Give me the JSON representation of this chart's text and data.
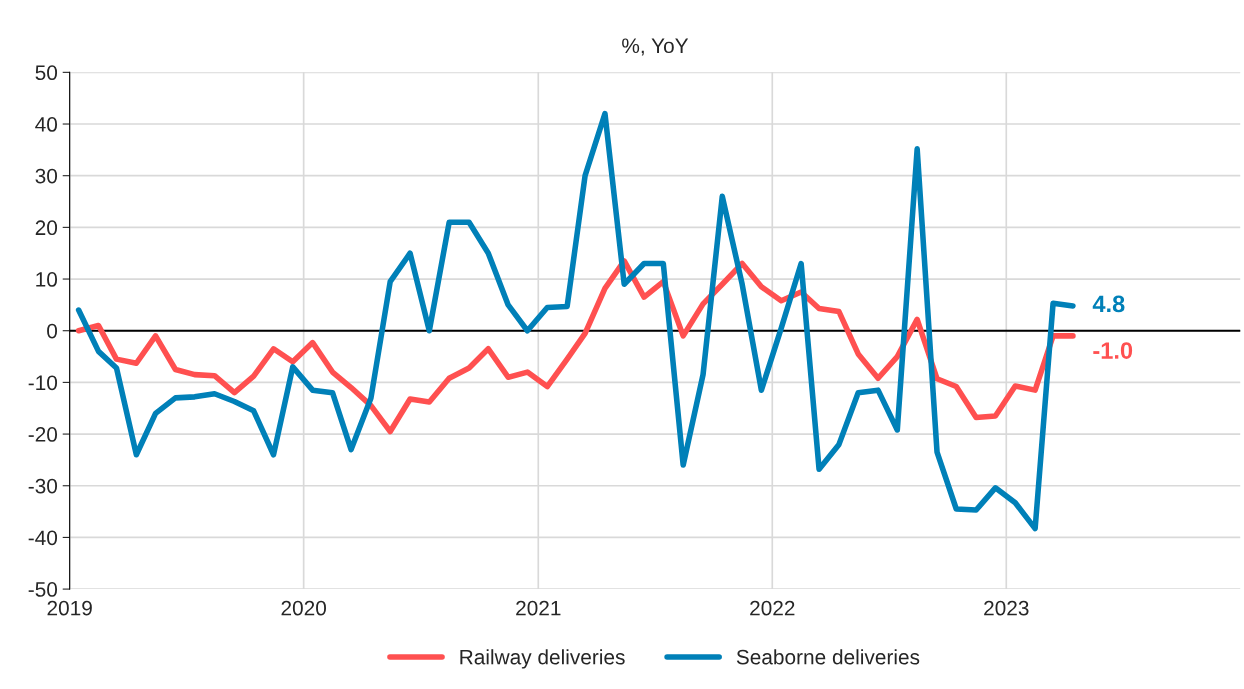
{
  "chart_data": {
    "type": "line",
    "title": "%, YoY",
    "x": [
      "2019-01-15",
      "2019-02-15",
      "2019-03-15",
      "2019-04-15",
      "2019-05-15",
      "2019-06-15",
      "2019-07-15",
      "2019-08-15",
      "2019-09-15",
      "2019-10-15",
      "2019-11-15",
      "2019-12-15",
      "2020-01-15",
      "2020-02-15",
      "2020-03-15",
      "2020-04-15",
      "2020-05-15",
      "2020-06-15",
      "2020-07-15",
      "2020-08-15",
      "2020-09-15",
      "2020-10-15",
      "2020-11-15",
      "2020-12-15",
      "2021-01-15",
      "2021-02-15",
      "2021-03-15",
      "2021-04-15",
      "2021-05-15",
      "2021-06-15",
      "2021-07-15",
      "2021-08-15",
      "2021-09-15",
      "2021-10-15",
      "2021-11-15",
      "2021-12-15",
      "2022-01-15",
      "2022-02-15",
      "2022-03-15",
      "2022-04-15",
      "2022-05-15",
      "2022-06-15",
      "2022-07-15",
      "2022-08-15",
      "2022-09-15",
      "2022-10-15",
      "2022-11-15",
      "2022-12-15",
      "2023-01-15",
      "2023-02-15",
      "2023-03-15",
      "2023-04-15"
    ],
    "series": [
      {
        "name": "Railway deliveries",
        "color": "#ff5050",
        "values": [
          0,
          1,
          -5.5,
          -6.3,
          -1,
          -7.5,
          -8.5,
          -8.7,
          -12,
          -8.8,
          -3.5,
          -6,
          -2.3,
          -8,
          -11,
          -14.5,
          -19.5,
          -13.2,
          -13.8,
          -9.2,
          -7.2,
          -3.5,
          -9,
          -8,
          -10.8,
          -5.5,
          -0.5,
          8.2,
          13.5,
          6.5,
          9.5,
          -1,
          5.2,
          9,
          13,
          8.5,
          5.8,
          7.5,
          4.3,
          3.7,
          -4.5,
          -9.2,
          -5,
          2.2,
          -9.3,
          -10.8,
          -16.8,
          -16.5,
          -10.7,
          -11.5,
          -1.0,
          -1.0
        ],
        "value_labels": [
          null,
          null,
          null,
          null,
          null,
          null,
          null,
          null,
          null,
          null,
          null,
          null,
          null,
          null,
          null,
          null,
          null,
          null,
          null,
          null,
          null,
          null,
          null,
          null,
          null,
          null,
          null,
          null,
          null,
          null,
          null,
          null,
          null,
          null,
          null,
          null,
          null,
          null,
          null,
          null,
          null,
          null,
          null,
          null,
          null,
          null,
          null,
          null,
          null,
          null,
          null,
          "-1.0"
        ]
      },
      {
        "name": "Seaborne deliveries",
        "color": "#0080b8",
        "values": [
          4,
          -4,
          -7.2,
          -24,
          -16,
          -13,
          -12.8,
          -12.2,
          -13.7,
          -15.5,
          -24,
          -7,
          -11.5,
          -12,
          -23,
          -13,
          9.5,
          15,
          0,
          21,
          21,
          15,
          5,
          0,
          4.5,
          4.7,
          30,
          42,
          9,
          13,
          13,
          -26,
          -8.5,
          26,
          9,
          -11.5,
          0.5,
          13,
          -26.8,
          -22,
          -12,
          -11.5,
          -19.2,
          35.2,
          -23.5,
          -34.5,
          -34.7,
          -30.4,
          -33.3,
          -38.3,
          5.3,
          4.8
        ],
        "value_labels": [
          null,
          null,
          null,
          null,
          null,
          null,
          null,
          null,
          null,
          null,
          null,
          null,
          null,
          null,
          null,
          null,
          null,
          null,
          null,
          null,
          null,
          null,
          null,
          null,
          null,
          null,
          null,
          null,
          null,
          null,
          null,
          null,
          null,
          null,
          null,
          null,
          null,
          null,
          null,
          null,
          null,
          null,
          null,
          null,
          null,
          null,
          null,
          null,
          null,
          null,
          null,
          "4.8"
        ]
      }
    ],
    "xlim": [
      "2019-01-01",
      "2024-01-01"
    ],
    "xticks": [
      {
        "value": "2019-01-01",
        "label": "2019"
      },
      {
        "value": "2020-01-01",
        "label": "2020"
      },
      {
        "value": "2021-01-01",
        "label": "2021"
      },
      {
        "value": "2022-01-01",
        "label": "2022"
      },
      {
        "value": "2023-01-01",
        "label": "2023"
      }
    ],
    "ylim": [
      -50,
      50
    ],
    "yticks": [
      -50,
      -40,
      -30,
      -20,
      -10,
      0,
      10,
      20,
      30,
      40,
      50
    ],
    "ref_lines": [
      {
        "axis": "y",
        "value": 0,
        "color": "#000000"
      }
    ],
    "grid": true,
    "legend": "bottom",
    "marker": "none",
    "line_style": "solid"
  }
}
